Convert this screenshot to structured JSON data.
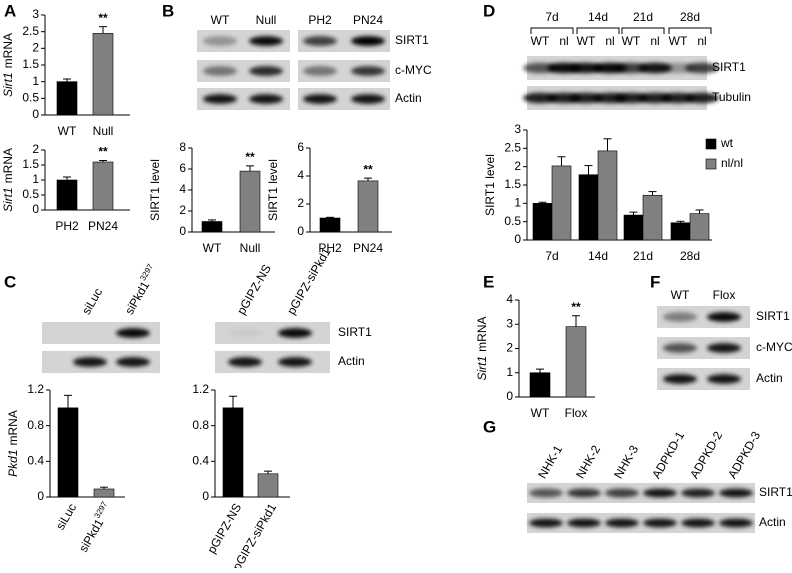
{
  "panel_labels": [
    "A",
    "B",
    "C",
    "D",
    "E",
    "F",
    "G"
  ],
  "blots": [
    {
      "lanes": [
        "WT",
        "Null",
        "PH2",
        "PN24"
      ],
      "rows": [
        "SIRT1",
        "c-MYC",
        "Actin"
      ]
    },
    {
      "lanes": [
        "siLuc",
        "siPkd1",
        "pGIPZ-NS",
        "pGIPZ-siPkd1"
      ],
      "lane_superscripts": [
        null,
        "3297",
        null,
        null
      ],
      "rows": [
        "SIRT1",
        "Actin"
      ]
    },
    {
      "groups": [
        "7d",
        "14d",
        "21d",
        "28d"
      ],
      "lanes": [
        "WT",
        "nl",
        "WT",
        "nl",
        "WT",
        "nl",
        "WT",
        "nl"
      ],
      "rows": [
        "SIRT1",
        "Tubulin"
      ]
    },
    {
      "lanes": [
        "WT",
        "Flox"
      ],
      "rows": [
        "SIRT1",
        "c-MYC",
        "Actin"
      ]
    },
    {
      "lanes": [
        "NHK-1",
        "NHK-2",
        "NHK-3",
        "ADPKD-1",
        "ADPKD-2",
        "ADPKD-3"
      ],
      "rows": [
        "SIRT1",
        "Actin"
      ]
    }
  ],
  "chart_data": [
    {
      "type": "bar",
      "ylabel": [
        "Sirt1",
        "mRNA"
      ],
      "ylabel_first_italic": true,
      "categories": [
        "WT",
        "Null"
      ],
      "values": [
        1.0,
        2.45
      ],
      "errors": [
        0.08,
        0.2
      ],
      "colors": [
        "#000000",
        "#808080"
      ],
      "ylim": [
        0,
        3
      ],
      "yticks": [
        0,
        0.5,
        1,
        1.5,
        2,
        2.5,
        3
      ],
      "annotations": [
        {
          "category": "Null",
          "text": "**"
        }
      ]
    },
    {
      "type": "bar",
      "ylabel": [
        "Sirt1",
        "mRNA"
      ],
      "ylabel_first_italic": true,
      "categories": [
        "PH2",
        "PN24"
      ],
      "values": [
        1.0,
        1.6
      ],
      "errors": [
        0.1,
        0.05
      ],
      "colors": [
        "#000000",
        "#808080"
      ],
      "ylim": [
        0,
        2
      ],
      "yticks": [
        0,
        0.5,
        1,
        1.5,
        2
      ],
      "annotations": [
        {
          "category": "PN24",
          "text": "**"
        }
      ]
    },
    {
      "type": "bar",
      "ylabel": [
        "SIRT1 level"
      ],
      "categories": [
        "WT",
        "Null"
      ],
      "values": [
        1.0,
        5.8
      ],
      "errors": [
        0.15,
        0.5
      ],
      "colors": [
        "#000000",
        "#808080"
      ],
      "ylim": [
        0,
        8
      ],
      "yticks": [
        0,
        2,
        4,
        6,
        8
      ],
      "annotations": [
        {
          "category": "Null",
          "text": "**"
        }
      ]
    },
    {
      "type": "bar",
      "ylabel": [
        "SIRT1 level"
      ],
      "categories": [
        "PH2",
        "PN24"
      ],
      "values": [
        1.0,
        3.65
      ],
      "errors": [
        0.05,
        0.2
      ],
      "colors": [
        "#000000",
        "#808080"
      ],
      "ylim": [
        0,
        6
      ],
      "yticks": [
        0,
        2,
        4,
        6
      ],
      "annotations": [
        {
          "category": "PN24",
          "text": "**"
        }
      ]
    },
    {
      "type": "bar",
      "ylabel": [
        "SIRT1 level"
      ],
      "categories": [
        "7d",
        "14d",
        "21d",
        "28d"
      ],
      "series": [
        {
          "name": "wt",
          "color": "#000000",
          "values": [
            1.0,
            1.78,
            0.68,
            0.47
          ],
          "errors": [
            0.03,
            0.25,
            0.08,
            0.04
          ]
        },
        {
          "name": "nl/nl",
          "color": "#808080",
          "values": [
            2.02,
            2.43,
            1.22,
            0.72
          ],
          "errors": [
            0.25,
            0.33,
            0.1,
            0.1
          ]
        }
      ],
      "ylim": [
        0,
        3
      ],
      "yticks": [
        0,
        0.5,
        1,
        1.5,
        2,
        2.5,
        3
      ],
      "legend": "top-right"
    },
    {
      "type": "bar",
      "ylabel": [
        "Pkd1",
        "mRNA"
      ],
      "ylabel_first_italic": true,
      "categories": [
        "siLuc",
        "siPkd1"
      ],
      "category_superscripts": [
        null,
        "3297"
      ],
      "values": [
        1.0,
        0.09
      ],
      "errors": [
        0.14,
        0.02
      ],
      "colors": [
        "#000000",
        "#808080"
      ],
      "ylim": [
        0,
        1.2
      ],
      "yticks": [
        0,
        0.4,
        0.8,
        1.2
      ]
    },
    {
      "type": "bar",
      "categories": [
        "pGIPZ-NS",
        "pGIPZ-siPkd1"
      ],
      "values": [
        1.0,
        0.26
      ],
      "errors": [
        0.13,
        0.03
      ],
      "colors": [
        "#000000",
        "#808080"
      ],
      "ylim": [
        0,
        1.2
      ],
      "yticks": [
        0,
        0.4,
        0.8,
        1.2
      ]
    },
    {
      "type": "bar",
      "ylabel": [
        "Sirt1",
        "mRNA"
      ],
      "ylabel_first_italic": true,
      "categories": [
        "WT",
        "Flox"
      ],
      "values": [
        1.0,
        2.9
      ],
      "errors": [
        0.15,
        0.45
      ],
      "colors": [
        "#000000",
        "#808080"
      ],
      "ylim": [
        0,
        4
      ],
      "yticks": [
        0,
        1,
        2,
        3,
        4
      ],
      "annotations": [
        {
          "category": "Flox",
          "text": "**"
        }
      ]
    }
  ]
}
